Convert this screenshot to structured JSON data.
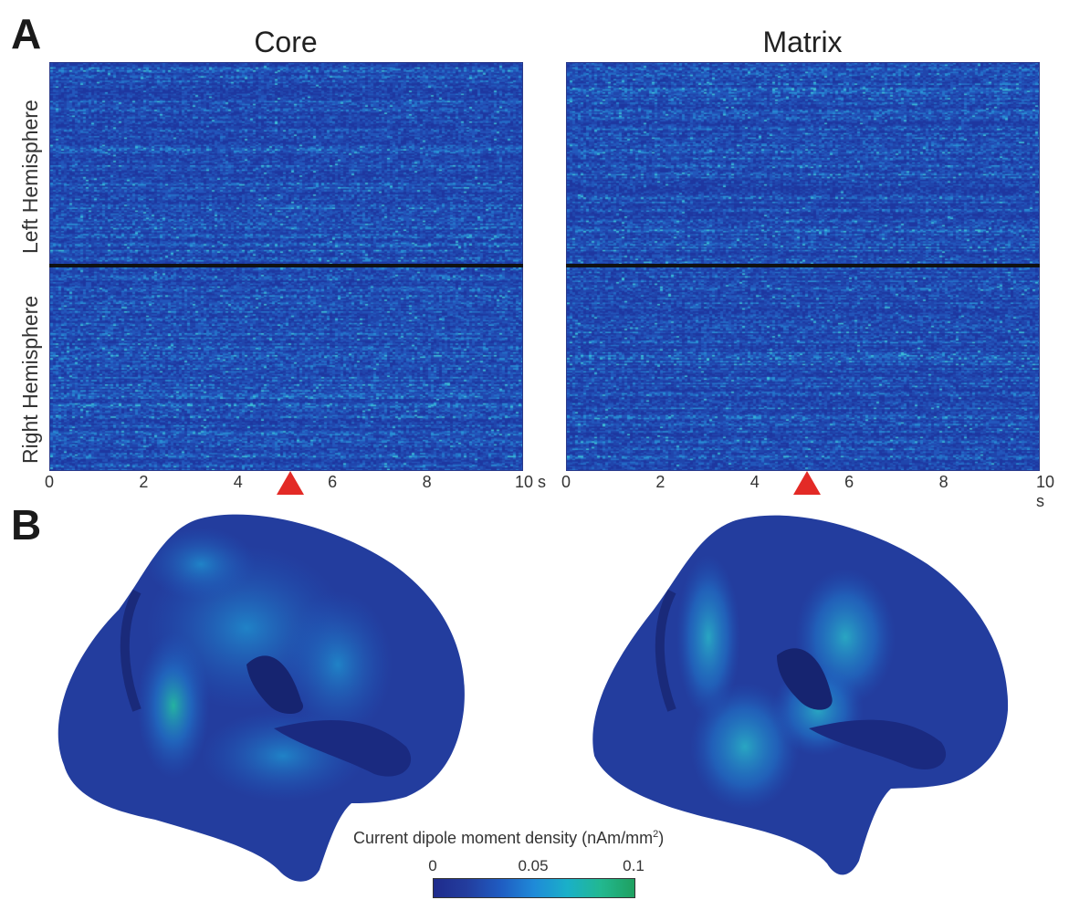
{
  "figure": {
    "panel_a_label": "A",
    "panel_b_label": "B",
    "hemisphere_labels": {
      "left": "Left Hemisphere",
      "right": "Right Hemisphere"
    },
    "time_marker_s": 5.1,
    "marker_color": "#e32a26",
    "colormap": [
      "#1f2b8c",
      "#233d9e",
      "#1f5cc2",
      "#1f8ad8",
      "#1ab0c8",
      "#22b890",
      "#1fa060"
    ]
  },
  "chart_data": [
    {
      "type": "heatmap",
      "title": "Core",
      "x_ticks": [
        "0",
        "2",
        "4",
        "6",
        "8",
        "10 s"
      ],
      "xlim": [
        0,
        10
      ],
      "rows_top": "Left Hemisphere",
      "rows_bottom": "Right Hemisphere"
    },
    {
      "type": "heatmap",
      "title": "Matrix",
      "x_ticks": [
        "0",
        "2",
        "4",
        "6",
        "8",
        "10 s"
      ],
      "xlim": [
        0,
        10
      ],
      "rows_top": "Left Hemisphere",
      "rows_bottom": "Right Hemisphere"
    }
  ],
  "colorbar": {
    "label_prefix": "Current dipole moment density (nAm/mm",
    "label_sup": "2",
    "label_suffix": ")",
    "ticks": [
      "0",
      "0.05",
      "0.1"
    ],
    "range": [
      0,
      0.1
    ]
  }
}
